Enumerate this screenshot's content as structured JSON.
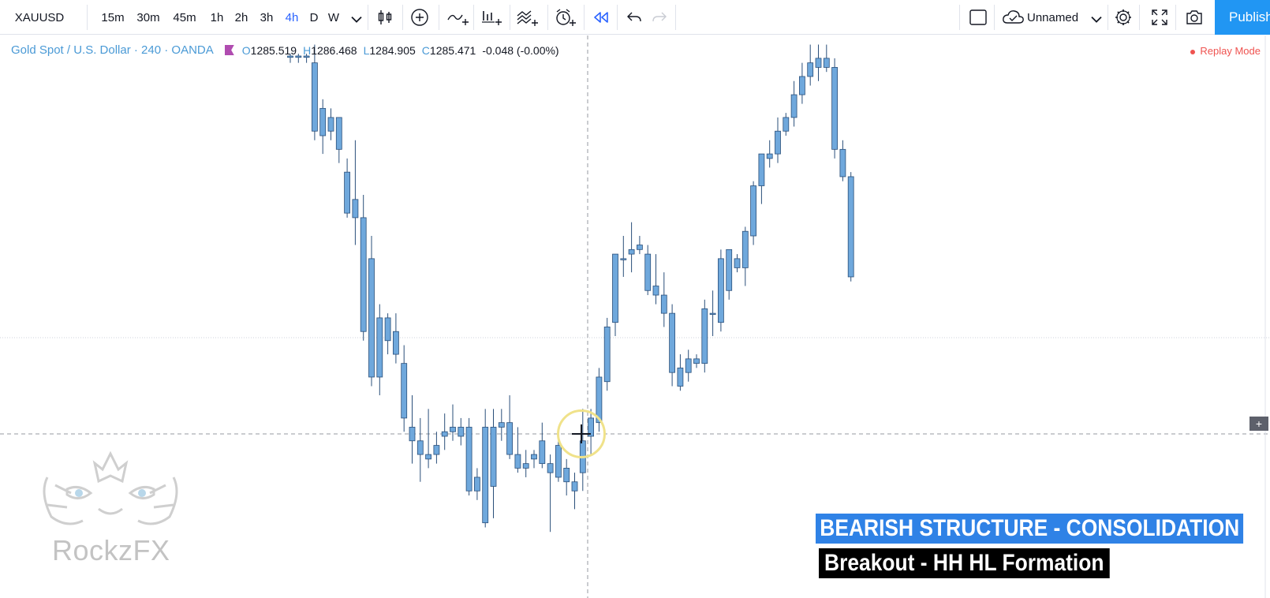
{
  "toolbar": {
    "symbol": "XAUUSD",
    "intervals": [
      {
        "label": "15m",
        "active": false
      },
      {
        "label": "30m",
        "active": false
      },
      {
        "label": "45m",
        "active": false
      },
      {
        "label": "1h",
        "active": false
      },
      {
        "label": "2h",
        "active": false
      },
      {
        "label": "3h",
        "active": false
      },
      {
        "label": "4h",
        "active": true
      },
      {
        "label": "D",
        "active": false
      },
      {
        "label": "W",
        "active": false
      }
    ],
    "layout_name": "Unnamed",
    "publish_label": "Publish"
  },
  "legend": {
    "title": "Gold Spot / U.S. Dollar · 240 · OANDA",
    "o_key": "O",
    "o_val": "1285.519",
    "h_key": "H",
    "h_val": "1286.468",
    "l_key": "L",
    "l_val": "1284.905",
    "c_key": "C",
    "c_val": "1285.471",
    "change": "-0.048 (-0.00%)"
  },
  "replay_label": "Replay Mode",
  "watermark": "RockzFX",
  "captions": {
    "line1": "BEARISH STRUCTURE - CONSOLIDATION",
    "line2": "Breakout - HH HL Formation"
  },
  "colors": {
    "candle_fill": "#6fa8dc",
    "candle_border": "#2a4f7a",
    "accent": "#2962ff",
    "publish": "#2196f3",
    "caption_blue": "#2f82e6"
  },
  "chart_data": {
    "type": "candlestick",
    "symbol": "XAUUSD",
    "interval": "240",
    "ohlc_readout": {
      "open": 1285.519,
      "high": 1286.468,
      "low": 1284.905,
      "close": 1285.471
    },
    "price_axis": "hidden",
    "candles_relative": [
      [
        0.955,
        0.96,
        0.94,
        0.952
      ],
      [
        0.955,
        0.96,
        0.94,
        0.952
      ],
      [
        0.955,
        0.96,
        0.94,
        0.952
      ],
      [
        0.94,
        0.98,
        0.77,
        0.79
      ],
      [
        0.84,
        0.86,
        0.74,
        0.78
      ],
      [
        0.82,
        0.84,
        0.77,
        0.79
      ],
      [
        0.82,
        0.82,
        0.72,
        0.75
      ],
      [
        0.7,
        0.73,
        0.6,
        0.61
      ],
      [
        0.64,
        0.77,
        0.54,
        0.6
      ],
      [
        0.6,
        0.65,
        0.33,
        0.35
      ],
      [
        0.51,
        0.56,
        0.23,
        0.25
      ],
      [
        0.38,
        0.41,
        0.21,
        0.25
      ],
      [
        0.38,
        0.39,
        0.3,
        0.33
      ],
      [
        0.35,
        0.39,
        0.28,
        0.3
      ],
      [
        0.28,
        0.32,
        0.13,
        0.16
      ],
      [
        0.14,
        0.21,
        0.06,
        0.11
      ],
      [
        0.11,
        0.16,
        0.02,
        0.08
      ],
      [
        0.08,
        0.18,
        0.05,
        0.07
      ],
      [
        0.08,
        0.13,
        0.06,
        0.1
      ],
      [
        0.13,
        0.17,
        0.09,
        0.12
      ],
      [
        0.14,
        0.19,
        0.11,
        0.13
      ],
      [
        0.12,
        0.16,
        0.1,
        0.14
      ],
      [
        0.14,
        0.16,
        -0.01,
        0.0
      ],
      [
        0.03,
        0.05,
        -0.02,
        0.0
      ],
      [
        0.14,
        0.18,
        -0.08,
        -0.07
      ],
      [
        0.14,
        0.18,
        -0.06,
        0.01
      ],
      [
        0.14,
        0.18,
        0.11,
        0.15
      ],
      [
        0.15,
        0.21,
        0.07,
        0.08
      ],
      [
        0.08,
        0.14,
        0.04,
        0.05
      ],
      [
        0.05,
        0.09,
        0.03,
        0.06
      ],
      [
        0.07,
        0.09,
        0.05,
        0.08
      ],
      [
        0.11,
        0.15,
        0.05,
        0.06
      ],
      [
        0.06,
        0.08,
        -0.09,
        0.04
      ],
      [
        0.1,
        0.12,
        0.02,
        0.03
      ],
      [
        0.05,
        0.07,
        -0.01,
        0.02
      ],
      [
        0.02,
        0.04,
        -0.04,
        0.0
      ],
      [
        0.04,
        0.18,
        0.0,
        0.11
      ],
      [
        0.12,
        0.18,
        0.08,
        0.16
      ],
      [
        0.15,
        0.27,
        0.13,
        0.25
      ],
      [
        0.24,
        0.38,
        0.22,
        0.36
      ],
      [
        0.37,
        0.43,
        0.34,
        0.52
      ],
      [
        0.51,
        0.56,
        0.47,
        0.51
      ],
      [
        0.52,
        0.59,
        0.48,
        0.53
      ],
      [
        0.54,
        0.56,
        0.52,
        0.53
      ],
      [
        0.52,
        0.54,
        0.43,
        0.44
      ],
      [
        0.45,
        0.52,
        0.41,
        0.43
      ],
      [
        0.43,
        0.48,
        0.36,
        0.39
      ],
      [
        0.39,
        0.41,
        0.23,
        0.26
      ],
      [
        0.27,
        0.3,
        0.22,
        0.23
      ],
      [
        0.26,
        0.31,
        0.24,
        0.29
      ],
      [
        0.28,
        0.3,
        0.27,
        0.29
      ],
      [
        0.28,
        0.42,
        0.26,
        0.4
      ],
      [
        0.39,
        0.44,
        0.34,
        0.39
      ],
      [
        0.37,
        0.53,
        0.35,
        0.51
      ],
      [
        0.44,
        0.53,
        0.42,
        0.53
      ],
      [
        0.49,
        0.52,
        0.48,
        0.51
      ],
      [
        0.49,
        0.58,
        0.45,
        0.57
      ],
      [
        0.56,
        0.68,
        0.54,
        0.67
      ],
      [
        0.67,
        0.74,
        0.63,
        0.74
      ],
      [
        0.73,
        0.77,
        0.71,
        0.74
      ],
      [
        0.74,
        0.82,
        0.72,
        0.79
      ],
      [
        0.79,
        0.83,
        0.78,
        0.82
      ],
      [
        0.82,
        0.9,
        0.8,
        0.87
      ],
      [
        0.87,
        0.94,
        0.85,
        0.91
      ],
      [
        0.91,
        0.98,
        0.89,
        0.94
      ],
      [
        0.93,
        0.98,
        0.9,
        0.95
      ],
      [
        0.95,
        0.98,
        0.92,
        0.93
      ],
      [
        0.93,
        0.95,
        0.73,
        0.75
      ],
      [
        0.75,
        0.77,
        0.68,
        0.69
      ],
      [
        0.69,
        0.7,
        0.46,
        0.47
      ]
    ]
  }
}
